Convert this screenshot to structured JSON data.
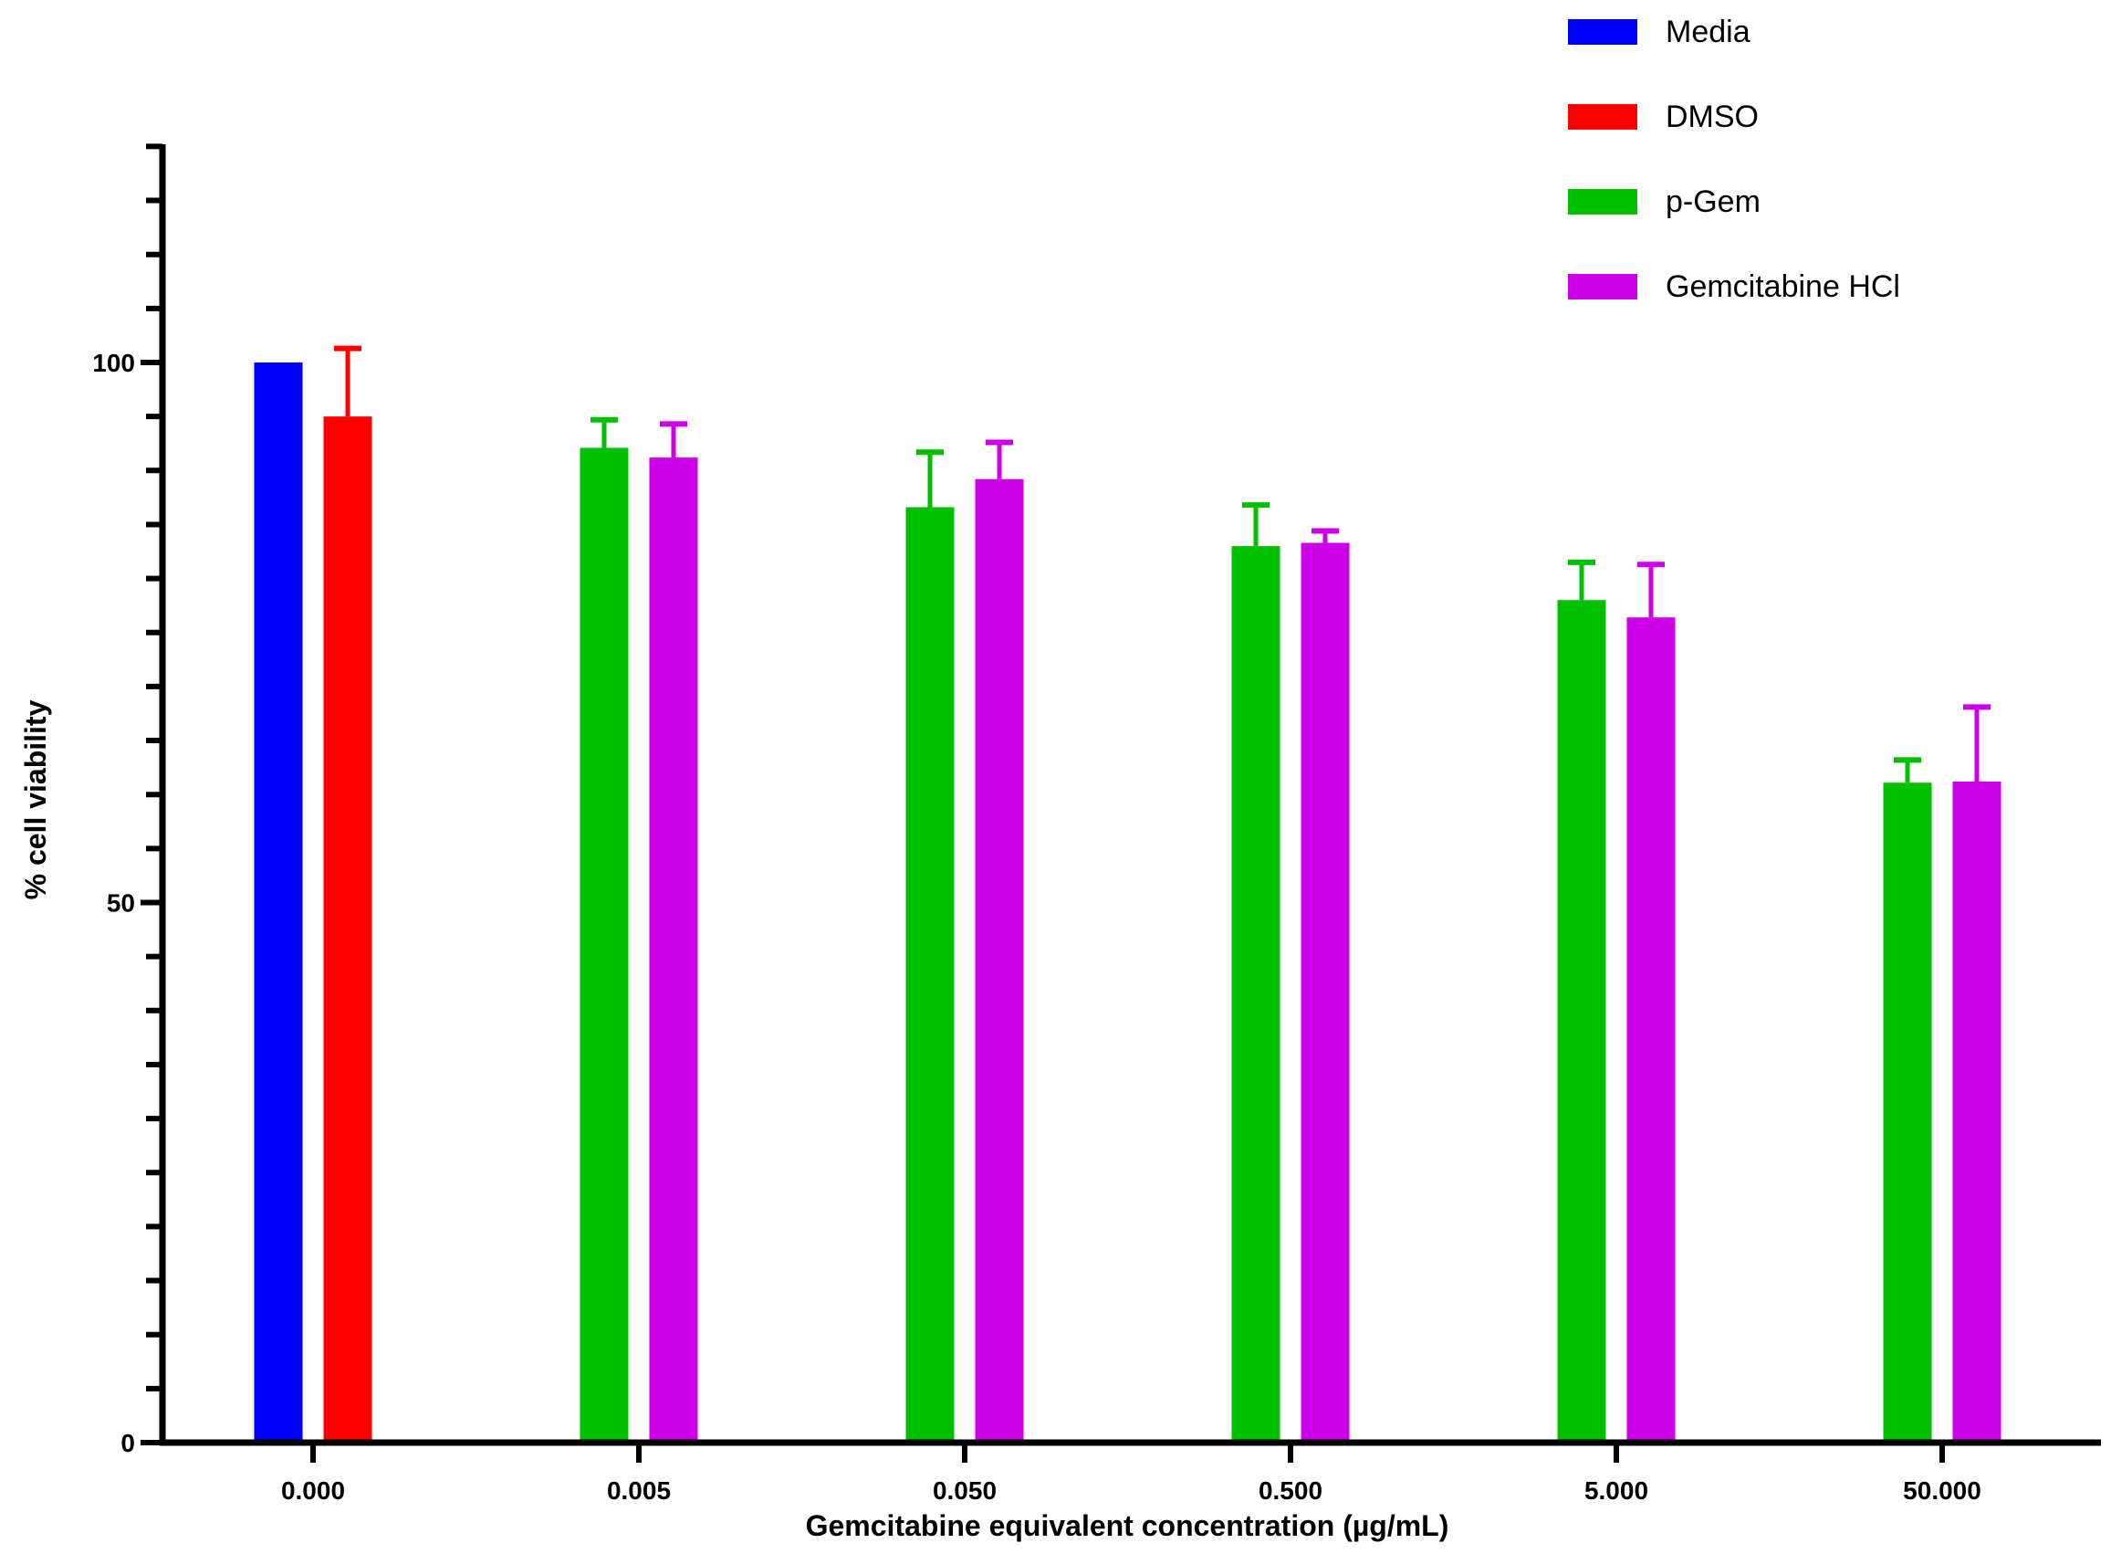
{
  "chart_data": {
    "type": "bar",
    "title": "",
    "xlabel": "Gemcitabine equivalent concentration (µg/mL)",
    "ylabel": "% cell viability",
    "ylim": [
      0,
      120
    ],
    "yticks_major": [
      0,
      50,
      100
    ],
    "ytick_labels": [
      "0",
      "50",
      "100"
    ],
    "ytick_minor_step": 5,
    "categories": [
      "0.000",
      "0.005",
      "0.050",
      "0.500",
      "5.000",
      "50.000"
    ],
    "legend_position": "top-right",
    "series": [
      {
        "name": "Media",
        "color": "#0000ff",
        "values": [
          100,
          null,
          null,
          null,
          null,
          null
        ],
        "errors": [
          0,
          null,
          null,
          null,
          null,
          null
        ]
      },
      {
        "name": "DMSO",
        "color": "#ff0000",
        "values": [
          95,
          null,
          null,
          null,
          null,
          null
        ],
        "errors": [
          6.3,
          null,
          null,
          null,
          null,
          null
        ]
      },
      {
        "name": "p-Gem",
        "color": "#00c000",
        "values": [
          null,
          92.1,
          86.6,
          83,
          78,
          61.1
        ],
        "errors": [
          null,
          2.6,
          5.1,
          3.8,
          3.5,
          2.1
        ]
      },
      {
        "name": "Gemcitabine HCl",
        "color": "#cc00e6",
        "values": [
          null,
          91.2,
          89.2,
          83.3,
          76.4,
          61.2
        ],
        "errors": [
          null,
          3.1,
          3.4,
          1.1,
          4.9,
          6.9
        ]
      }
    ]
  }
}
